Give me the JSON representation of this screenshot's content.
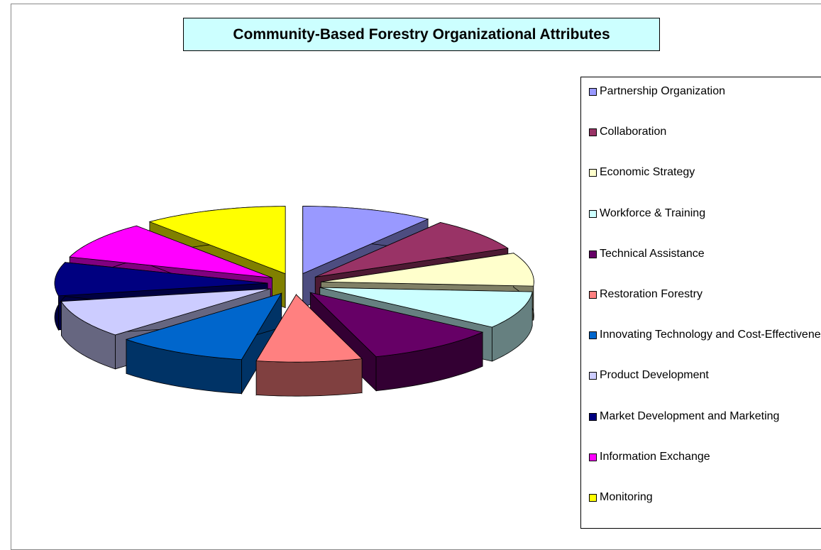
{
  "chart_data": {
    "type": "pie3d",
    "title": "Community-Based Forestry Organizational Attributes",
    "categories": [
      "Partnership Organization",
      "Collaboration",
      "Economic Strategy",
      "Workforce & Training",
      "Technical Assistance",
      "Restoration Forestry",
      "Innovating Technology and Cost-Effectiveness",
      "Product Development",
      "Market Development and Marketing",
      "Information Exchange",
      "Monitoring"
    ],
    "values": [
      10,
      8,
      8,
      9,
      10,
      8,
      10,
      9,
      8,
      9,
      11
    ],
    "colors": [
      "#9999ff",
      "#993366",
      "#ffffcc",
      "#ccffff",
      "#660066",
      "#ff8080",
      "#0066cc",
      "#ccccff",
      "#000080",
      "#ff00ff",
      "#ffff00"
    ],
    "legend": "right"
  }
}
